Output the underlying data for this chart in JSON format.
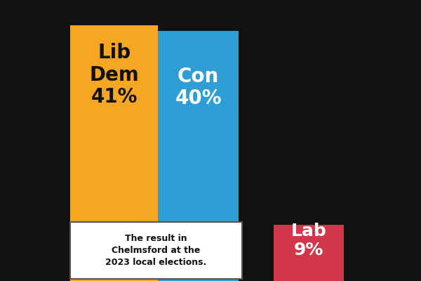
{
  "categories": [
    "Lib Dem",
    "Con",
    "Lab"
  ],
  "values": [
    41,
    40,
    9
  ],
  "colors": [
    "#F5A623",
    "#2E9FD4",
    "#D0374A"
  ],
  "label_lines": [
    [
      "Lib",
      "Dem",
      "41%"
    ],
    [
      "Con",
      "40%"
    ],
    [
      "Lab",
      "9%"
    ]
  ],
  "label_colors": [
    "#111111",
    "#ffffff",
    "#ffffff"
  ],
  "background_color": "#111111",
  "annotation_text": "The result in\nChelmsford at the\n2023 local elections.",
  "annotation_color": "#111111",
  "annotation_bg": "#ffffff",
  "annotation_border": "#555555"
}
